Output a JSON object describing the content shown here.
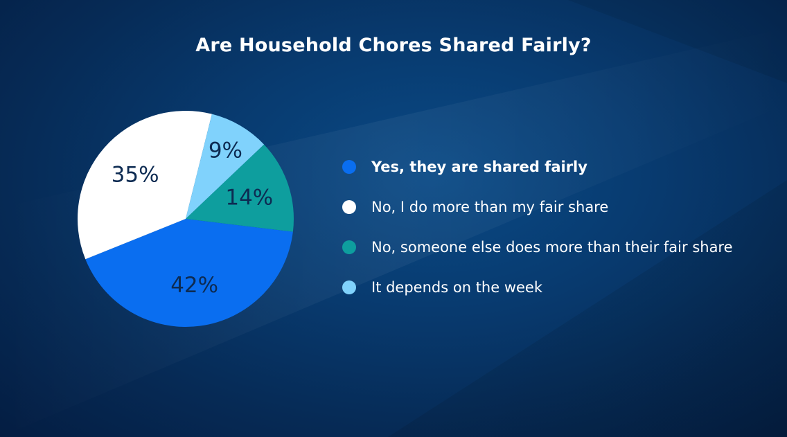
{
  "chart_data": {
    "type": "pie",
    "title": "Are Household Chores Shared Fairly?",
    "legend_position": "right",
    "slices": [
      {
        "label": "Yes, they are shared fairly",
        "value": 42,
        "display": "42%",
        "color": "#0a6ef0"
      },
      {
        "label": "No, I do more than my fair share",
        "value": 35,
        "display": "35%",
        "color": "#ffffff"
      },
      {
        "label": "It depends on the week",
        "value": 9,
        "display": "9%",
        "color": "#80d2fc"
      },
      {
        "label": "No, someone else does more than their fair share",
        "value": 14,
        "display": "14%",
        "color": "#0e9e9e"
      }
    ],
    "legend": [
      {
        "label": "Yes, they are shared fairly",
        "color": "#0a6ef0",
        "bold": true
      },
      {
        "label": "No, I do more than my fair share",
        "color": "#ffffff",
        "bold": false
      },
      {
        "label": "No, someone else does more than their fair share",
        "color": "#0e9e9e",
        "bold": false
      },
      {
        "label": "It depends on the week",
        "color": "#80d2fc",
        "bold": false
      }
    ]
  }
}
